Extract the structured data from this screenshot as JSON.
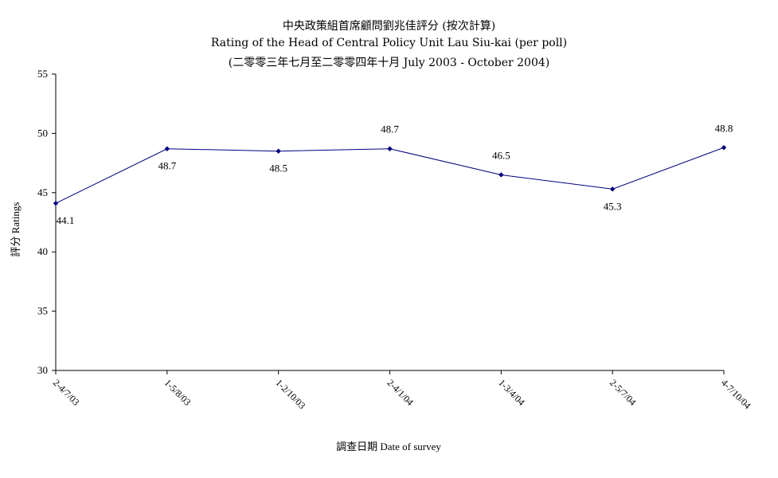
{
  "chart_data": {
    "type": "line",
    "title": "中央政策組首席顧問劉兆佳評分 (按次計算)",
    "subtitle": "Rating of  the Head of Central Policy Unit Lau Siu-kai  (per poll)",
    "subtitle2": "(二零零三年七月至二零零四年十月 July 2003 - October 2004)",
    "xlabel": "調查日期 Date of survey",
    "ylabel": "評分 Ratings",
    "categories": [
      "2-4/7/03",
      "1-5/8/03",
      "1-2/10/03",
      "2-4/1/04",
      "1-3/4/04",
      "2-5/7/04",
      "4-7/10/04"
    ],
    "series": [
      {
        "values": [
          44.1,
          48.7,
          48.5,
          48.7,
          46.5,
          45.3,
          48.8
        ]
      }
    ],
    "data_labels": [
      "44.1",
      "48.7",
      "48.5",
      "48.7",
      "46.5",
      "45.3",
      "48.8"
    ],
    "ylim": [
      30,
      55
    ],
    "yticks": [
      30,
      35,
      40,
      45,
      50,
      55
    ],
    "grid": false,
    "legend": "none",
    "line_color": "#000080"
  }
}
